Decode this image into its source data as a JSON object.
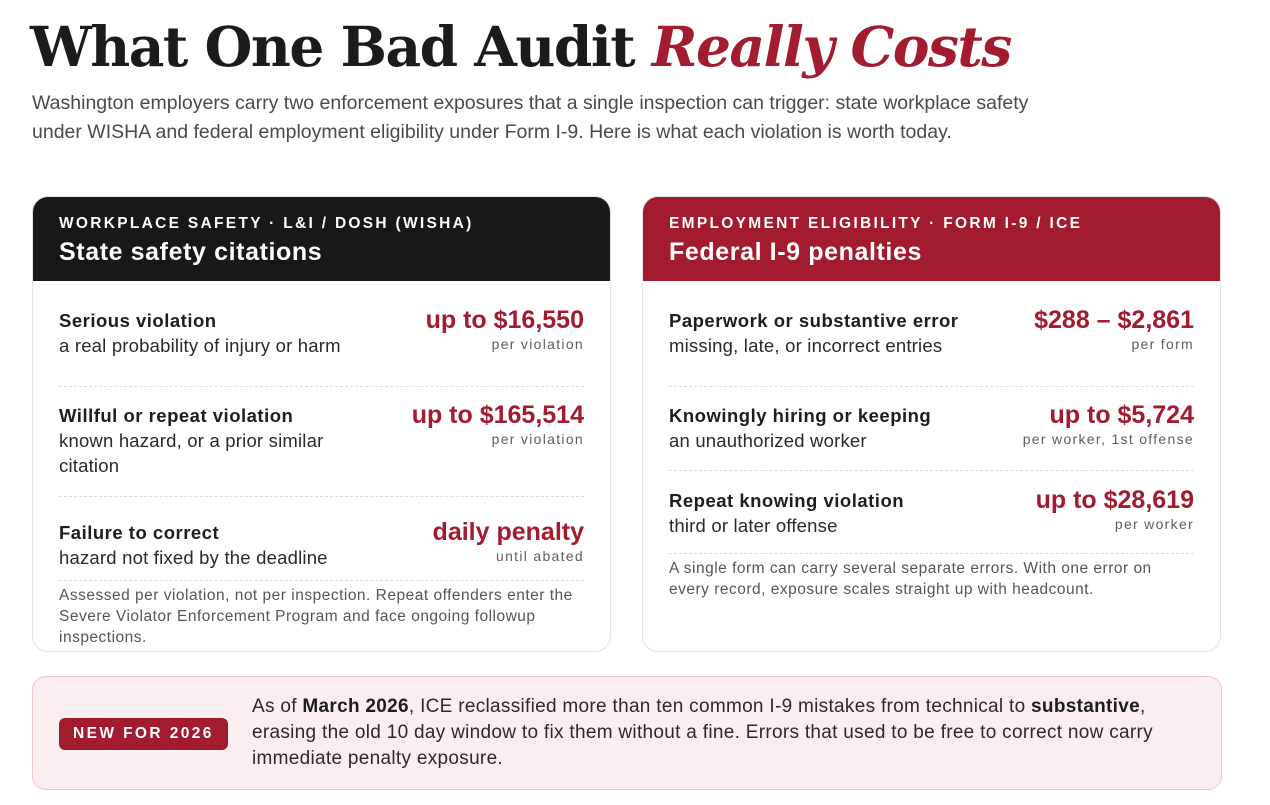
{
  "headline": {
    "main": "What One Bad Audit ",
    "accent": "Really Costs"
  },
  "intro": "Washington employers carry two enforcement exposures that a single inspection can trigger: state workplace safety under WISHA and federal employment eligibility under Form I-9. Here is what each violation is worth today.",
  "wisha_card": {
    "kicker": "WORKPLACE SAFETY · L&I / DOSH (WISHA)",
    "title": "State safety citations",
    "rows": [
      {
        "label": "Serious violation",
        "description": "a real probability of injury or harm",
        "amount": "up to $16,550",
        "unit": "per violation"
      },
      {
        "label": "Willful or repeat violation",
        "description": "known hazard, or a prior similar citation",
        "amount": "up to $165,514",
        "unit": "per violation"
      },
      {
        "label": "Failure to correct",
        "description": "hazard not fixed by the deadline",
        "amount": "daily penalty",
        "unit": "until abated"
      }
    ],
    "note": "Assessed per violation, not per inspection. Repeat offenders enter the Severe Violator Enforcement Program and face ongoing followup inspections."
  },
  "i9_card": {
    "kicker": "EMPLOYMENT ELIGIBILITY · FORM I-9 / ICE",
    "title": "Federal I-9 penalties",
    "rows": [
      {
        "label": "Paperwork or substantive error",
        "description": "missing, late, or incorrect entries",
        "amount": "$288 – $2,861",
        "unit": "per form"
      },
      {
        "label": "Knowingly hiring or keeping",
        "description": "an unauthorized worker",
        "amount": "up to $5,724",
        "unit": "per worker, 1st offense"
      },
      {
        "label": "Repeat knowing violation",
        "description": "third or later offense",
        "amount": "up to $28,619",
        "unit": "per worker"
      }
    ],
    "note": "A single form can carry several separate errors. With one error on every record, exposure scales straight up with headcount."
  },
  "banner": {
    "badge": "NEW FOR 2026",
    "text_1": "As of ",
    "bold_1": "March 2026",
    "text_2": ", ICE reclassified more than ten common I-9 mistakes from technical to ",
    "bold_2": "substantive",
    "text_3": ", erasing the old 10 day window to fix them without a fine. Errors that used to be free to correct now carry immediate penalty exposure."
  },
  "colors": {
    "accent": "#a31b2e",
    "dark": "#18181a",
    "banner_bg": "#fbeef0"
  }
}
